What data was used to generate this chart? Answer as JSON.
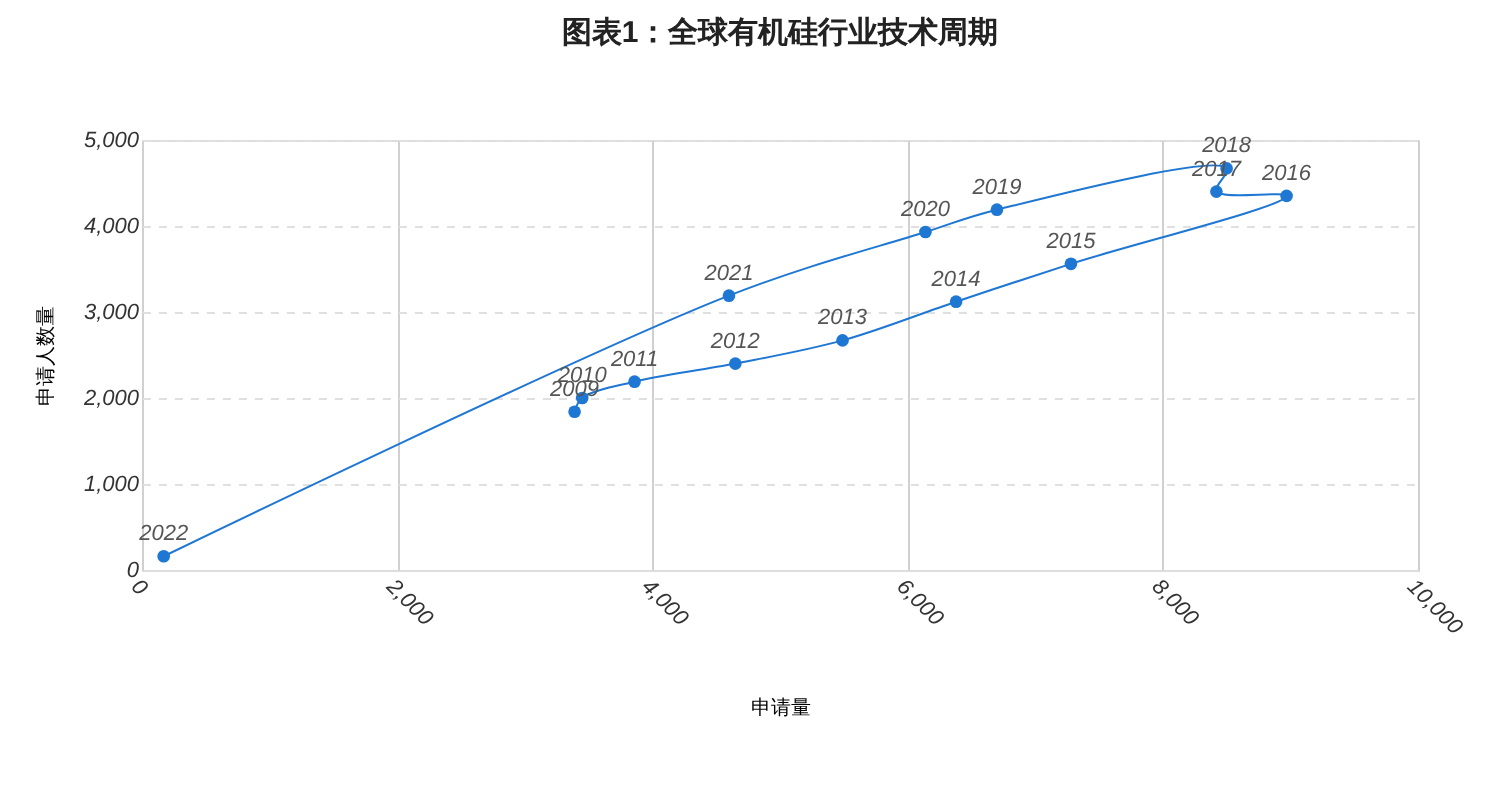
{
  "chart_data": {
    "type": "line",
    "title": "图表1：全球有机硅行业技术周期",
    "xlabel": "申请量",
    "ylabel": "申请人数量",
    "series": [
      {
        "color": "#1f77d4",
        "x": [
          3390,
          3450,
          3860,
          4650,
          5490,
          6380,
          7280,
          8970,
          8420,
          8500,
          6700,
          6140,
          4600,
          170
        ],
        "values": [
          1840,
          2000,
          2190,
          2400,
          2670,
          3120,
          3560,
          4350,
          4400,
          4670,
          4190,
          3930,
          3190,
          160
        ]
      }
    ],
    "annotations": [
      {
        "text": "2009",
        "x": 3390,
        "y": 1840
      },
      {
        "text": "2010",
        "x": 3450,
        "y": 2000
      },
      {
        "text": "2011",
        "x": 3860,
        "y": 2190
      },
      {
        "text": "2012",
        "x": 4650,
        "y": 2400
      },
      {
        "text": "2013",
        "x": 5490,
        "y": 2670
      },
      {
        "text": "2014",
        "x": 6380,
        "y": 3120
      },
      {
        "text": "2015",
        "x": 7280,
        "y": 3560
      },
      {
        "text": "2016",
        "x": 8970,
        "y": 4350
      },
      {
        "text": "2017",
        "x": 8420,
        "y": 4400
      },
      {
        "text": "2018",
        "x": 8500,
        "y": 4670
      },
      {
        "text": "2019",
        "x": 6700,
        "y": 4190
      },
      {
        "text": "2020",
        "x": 6140,
        "y": 3930
      },
      {
        "text": "2021",
        "x": 4600,
        "y": 3190
      },
      {
        "text": "2022",
        "x": 170,
        "y": 160
      }
    ],
    "xlim": [
      0,
      10000
    ],
    "ylim": [
      0,
      5000
    ],
    "xticks": [
      0,
      {
        "value": 2000,
        "label": "2,000"
      },
      {
        "value": 4000,
        "label": "4,000"
      },
      {
        "value": 6000,
        "label": "6,000"
      },
      {
        "value": 8000,
        "label": "8,000"
      },
      {
        "value": 10000,
        "label": "10,000"
      }
    ],
    "yticks": [
      0,
      {
        "value": 1000,
        "label": "1,000"
      },
      {
        "value": 2000,
        "label": "2,000"
      },
      {
        "value": 3000,
        "label": "3,000"
      },
      {
        "value": 4000,
        "label": "4,000"
      },
      {
        "value": 5000,
        "label": "5,000"
      }
    ],
    "grid": true,
    "marker": "circle",
    "line_style": "solid"
  }
}
